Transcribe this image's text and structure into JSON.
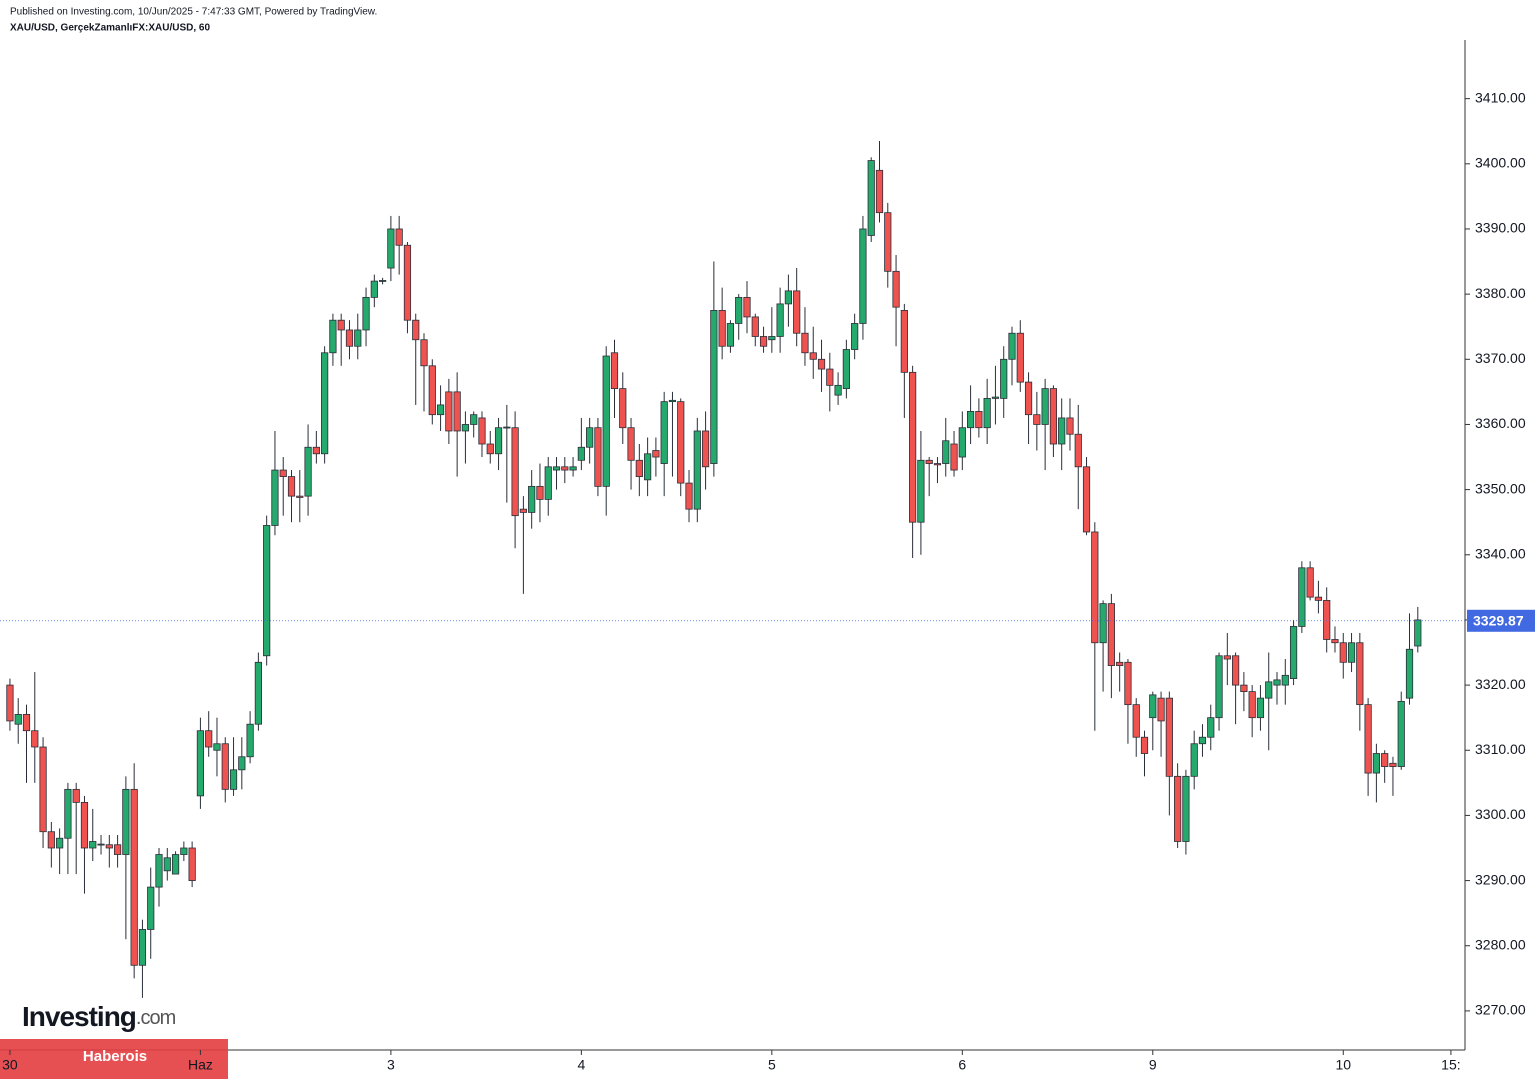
{
  "chart_data": {
    "type": "candlestick",
    "title": "Published on Investing.com, 10/Jun/2025 - 7:47:33 GMT, Powered by TradingView.",
    "subtitle": "XAU/USD, GerçekZamanlıFX:XAU/USD, 60",
    "up_color": "#26a96c",
    "down_color": "#ef5350",
    "last_price_color": "#4169e1",
    "ylim": [
      3264,
      3419
    ],
    "xlim": [
      -1.2,
      175.7
    ],
    "yticks": [
      {
        "value": 3270,
        "label": "3270.00"
      },
      {
        "value": 3280,
        "label": "3280.00"
      },
      {
        "value": 3290,
        "label": "3290.00"
      },
      {
        "value": 3300,
        "label": "3300.00"
      },
      {
        "value": 3310,
        "label": "3310.00"
      },
      {
        "value": 3320,
        "label": "3320.00"
      },
      {
        "value": 3330,
        "label": "3330.00"
      },
      {
        "value": 3340,
        "label": "3340.00"
      },
      {
        "value": 3350,
        "label": "3350.00"
      },
      {
        "value": 3360,
        "label": "3360.00"
      },
      {
        "value": 3370,
        "label": "3370.00"
      },
      {
        "value": 3380,
        "label": "3380.00"
      },
      {
        "value": 3390,
        "label": "3390.00"
      },
      {
        "value": 3400,
        "label": "3400.00"
      },
      {
        "value": 3410,
        "label": "3410.00"
      }
    ],
    "xticks": [
      {
        "value": 0,
        "label": "30"
      },
      {
        "value": 23,
        "label": "Haz"
      },
      {
        "value": 46,
        "label": "3"
      },
      {
        "value": 69,
        "label": "4"
      },
      {
        "value": 92,
        "label": "5"
      },
      {
        "value": 115,
        "label": "6"
      },
      {
        "value": 138,
        "label": "9"
      },
      {
        "value": 161,
        "label": "10"
      },
      {
        "value": 174,
        "label": "15:"
      }
    ],
    "last_price": 3329.87,
    "open": [
      3320,
      3314,
      3315.5,
      3313,
      3310.5,
      3297.5,
      3295,
      3296.5,
      3304,
      3302,
      3295,
      3295.5,
      3295.5,
      3295.5,
      3294,
      3304,
      3277,
      3282.5,
      3289,
      3291.5,
      3291,
      3294,
      3295,
      3303,
      3313,
      3310,
      3311,
      3304,
      3307,
      3309,
      3314,
      3324.5,
      3344.5,
      3353,
      3352,
      3349,
      3349,
      3356.5,
      3355.5,
      3371,
      3376,
      3374.5,
      3372,
      3374.5,
      3379.5,
      3382,
      3384,
      3390,
      3387.5,
      3376,
      3373,
      3369,
      3361.5,
      3365,
      3365,
      3359,
      3360,
      3361,
      3357,
      3355.5,
      3359.5,
      3359.5,
      3347,
      3346.5,
      3350.5,
      3348.5,
      3353,
      3353.5,
      3353,
      3354.5,
      3356.5,
      3359.5,
      3350.5,
      3371,
      3365.5,
      3359.5,
      3354.5,
      3351.5,
      3356,
      3354,
      3363.5,
      3363.5,
      3351,
      3347,
      3359,
      3354,
      3377.5,
      3372,
      3375.5,
      3379.5,
      3376.5,
      3373.5,
      3373,
      3373.5,
      3378.5,
      3380.5,
      3374,
      3371,
      3370,
      3368.5,
      3364.5,
      3365.5,
      3371.5,
      3375.5,
      3389,
      3399,
      3392.5,
      3383.5,
      3377.5,
      3368,
      3345,
      3354.5,
      3354,
      3354,
      3357,
      3355,
      3359.5,
      3362,
      3359.5,
      3364,
      3364,
      3370,
      3374,
      3366.5,
      3361.5,
      3360,
      3365.5,
      3357,
      3361,
      3358.5,
      3353.5,
      3343.5,
      3326.5,
      3332.5,
      3323.5,
      3323.5,
      3317,
      3312,
      3315,
      3318,
      3318,
      3306,
      3296,
      3306,
      3311,
      3312,
      3315,
      3324.5,
      3324.5,
      3320,
      3319,
      3315,
      3318,
      3320,
      3320,
      3321,
      3329,
      3338,
      3333.5,
      3333,
      3327,
      3326.5,
      3323.5,
      3326.5,
      3317,
      3306.5,
      3309.5,
      3308,
      3307.5,
      3318,
      3326
    ],
    "high": [
      3321,
      3318,
      3317,
      3322,
      3312,
      3299,
      3298,
      3305,
      3305,
      3303,
      3301,
      3297,
      3297,
      3297,
      3306,
      3308,
      3284,
      3292,
      3295,
      3295,
      3294.5,
      3296,
      3296,
      3315,
      3316,
      3315,
      3312,
      3312,
      3312,
      3316,
      3325,
      3346,
      3359,
      3355,
      3353,
      3353,
      3360,
      3359,
      3372,
      3377,
      3377,
      3376,
      3377,
      3381,
      3383,
      3382.5,
      3392,
      3392,
      3388,
      3377,
      3374,
      3370,
      3366,
      3367,
      3368,
      3362,
      3362,
      3362,
      3359,
      3361,
      3363,
      3362,
      3349,
      3353,
      3354,
      3355,
      3355,
      3355,
      3355,
      3361,
      3361,
      3361,
      3372,
      3373,
      3368,
      3361,
      3357,
      3358,
      3358,
      3365,
      3365,
      3364,
      3353,
      3361,
      3362,
      3385,
      3381,
      3376,
      3380,
      3382,
      3377,
      3375,
      3378,
      3381,
      3383,
      3384,
      3378,
      3375,
      3373,
      3371,
      3368,
      3373,
      3377,
      3392,
      3401,
      3403.5,
      3394,
      3386,
      3378.5,
      3369,
      3359,
      3355,
      3355,
      3361,
      3359,
      3362,
      3366,
      3364,
      3367,
      3369,
      3372,
      3375,
      3376,
      3368,
      3365,
      3367,
      3366,
      3364,
      3364,
      3363,
      3355,
      3345,
      3333,
      3334,
      3325,
      3324,
      3318,
      3313,
      3319,
      3319,
      3319,
      3308,
      3307,
      3313,
      3314,
      3317,
      3325,
      3328,
      3325,
      3322,
      3320,
      3320,
      3325,
      3322,
      3324,
      3330,
      3339,
      3339,
      3336,
      3335,
      3329,
      3328,
      3328,
      3328,
      3318,
      3311,
      3310,
      3309,
      3319,
      3331,
      3332
    ],
    "low": [
      3313,
      3311,
      3305,
      3305,
      3295,
      3292,
      3291,
      3291,
      3291,
      3288,
      3293,
      3294,
      3292,
      3292,
      3281,
      3275,
      3272,
      3278,
      3286,
      3290,
      3291,
      3293,
      3289,
      3301,
      3309,
      3306,
      3302,
      3303,
      3304,
      3308,
      3313,
      3323,
      3343,
      3346,
      3345,
      3345,
      3346,
      3354,
      3354,
      3369,
      3369,
      3370,
      3370,
      3372,
      3378,
      3381.5,
      3382,
      3383,
      3374,
      3363,
      3362,
      3360,
      3359,
      3357,
      3352,
      3354,
      3358,
      3355,
      3354,
      3353,
      3348,
      3341,
      3334,
      3344,
      3345,
      3346,
      3350,
      3351,
      3352,
      3353,
      3354,
      3349,
      3346,
      3361,
      3357,
      3350,
      3349,
      3349,
      3352,
      3349,
      3352,
      3349,
      3345,
      3345,
      3350,
      3352,
      3370,
      3371,
      3373,
      3374,
      3372,
      3371,
      3371,
      3371,
      3375,
      3372,
      3369,
      3367,
      3365,
      3362,
      3363,
      3364,
      3370,
      3373,
      3388,
      3391,
      3381,
      3372,
      3361,
      3339.5,
      3340,
      3349,
      3351,
      3352,
      3352,
      3353,
      3357,
      3358,
      3357,
      3360,
      3361,
      3366,
      3365,
      3357,
      3356,
      3353,
      3355,
      3353,
      3356,
      3347,
      3343,
      3313,
      3319,
      3318,
      3319,
      3311,
      3309,
      3306,
      3310,
      3309,
      3300,
      3295,
      3294,
      3304,
      3309,
      3310,
      3313,
      3320,
      3314,
      3316,
      3312,
      3313,
      3310,
      3317,
      3317,
      3320,
      3328,
      3333,
      3331,
      3325,
      3325,
      3321,
      3322,
      3313,
      3303,
      3302,
      3305,
      3303,
      3307,
      3317,
      3325
    ],
    "close": [
      3314.5,
      3315.5,
      3313,
      3310.5,
      3297.5,
      3295,
      3296.5,
      3304,
      3302,
      3295,
      3296,
      3295.6,
      3295,
      3294,
      3304,
      3277,
      3282.5,
      3289,
      3294,
      3293.5,
      3294,
      3295,
      3290,
      3313,
      3310.5,
      3311,
      3304,
      3307,
      3309,
      3314,
      3323.5,
      3344.5,
      3353,
      3352,
      3349,
      3348.8,
      3356.5,
      3355.5,
      3371,
      3376,
      3374.5,
      3372,
      3374.5,
      3379.5,
      3382,
      3382.1,
      3390,
      3387.5,
      3376,
      3373,
      3369,
      3361.5,
      3363,
      3359,
      3359,
      3360,
      3361.5,
      3357,
      3355.5,
      3359.5,
      3359.6,
      3346,
      3346.5,
      3350.5,
      3348.5,
      3353.5,
      3353.5,
      3353,
      3353.5,
      3356.5,
      3359.5,
      3350.5,
      3370.5,
      3365.5,
      3359.5,
      3354.5,
      3352,
      3355.5,
      3355,
      3363.5,
      3363.7,
      3351,
      3347,
      3359,
      3353.5,
      3377.5,
      3372,
      3375.5,
      3379.5,
      3376.5,
      3373.5,
      3372,
      3373.5,
      3378.5,
      3380.5,
      3374,
      3371,
      3370,
      3368.5,
      3366,
      3366,
      3371.5,
      3375.5,
      3390,
      3400.5,
      3392.5,
      3383.5,
      3378,
      3368,
      3345,
      3354.5,
      3354,
      3353.8,
      3357.5,
      3353,
      3359.5,
      3362,
      3359.5,
      3364,
      3364.2,
      3370,
      3374,
      3366.5,
      3361.5,
      3360,
      3365.5,
      3357,
      3361,
      3358.5,
      3353.5,
      3343.5,
      3326.5,
      3332.5,
      3323,
      3323,
      3317,
      3312,
      3309.5,
      3318.5,
      3314.5,
      3306,
      3296,
      3306,
      3311,
      3312,
      3315,
      3324.5,
      3324,
      3320,
      3319,
      3315,
      3318,
      3320.5,
      3320.8,
      3321.5,
      3329,
      3338,
      3333.5,
      3333,
      3327,
      3326.5,
      3323.5,
      3326.5,
      3317,
      3306.5,
      3309.5,
      3307.5,
      3307.5,
      3317.5,
      3325.5,
      3330
    ]
  },
  "logo": {
    "name": "Investing",
    "suffix": ".com"
  },
  "badge": "Haberois"
}
